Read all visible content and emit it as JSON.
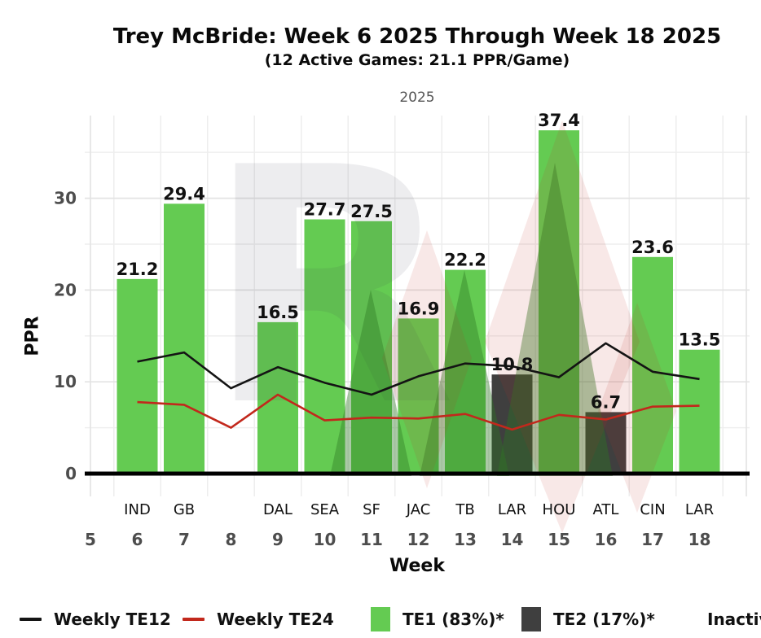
{
  "chart_data": {
    "type": "bar",
    "title": "Trey McBride: Week 6 2025 Through Week 18 2025",
    "subtitle": "(12 Active Games: 21.1 PPR/Game)",
    "facet_label": "2025",
    "xlabel": "Week",
    "ylabel": "PPR",
    "x_axis": {
      "ticks": [
        5,
        6,
        7,
        8,
        9,
        10,
        11,
        12,
        13,
        14,
        15,
        16,
        17,
        18
      ],
      "range": [
        5,
        19
      ]
    },
    "y_axis": {
      "major_ticks": [
        0,
        10,
        20,
        30
      ],
      "minor_ticks": [
        5,
        15,
        25,
        35
      ],
      "range": [
        -2.5,
        39.5
      ]
    },
    "games": [
      {
        "week": 6,
        "opponent": "IND",
        "ppr": 21.2,
        "tier": "TE1"
      },
      {
        "week": 7,
        "opponent": "GB",
        "ppr": 29.4,
        "tier": "TE1"
      },
      {
        "week": 8,
        "opponent": "",
        "ppr": null,
        "tier": null
      },
      {
        "week": 9,
        "opponent": "DAL",
        "ppr": 16.5,
        "tier": "TE1"
      },
      {
        "week": 10,
        "opponent": "SEA",
        "ppr": 27.7,
        "tier": "TE1"
      },
      {
        "week": 11,
        "opponent": "SF",
        "ppr": 27.5,
        "tier": "TE1"
      },
      {
        "week": 12,
        "opponent": "JAC",
        "ppr": 16.9,
        "tier": "TE1"
      },
      {
        "week": 13,
        "opponent": "TB",
        "ppr": 22.2,
        "tier": "TE1"
      },
      {
        "week": 14,
        "opponent": "LAR",
        "ppr": 10.8,
        "tier": "TE2"
      },
      {
        "week": 15,
        "opponent": "HOU",
        "ppr": 37.4,
        "tier": "TE1"
      },
      {
        "week": 16,
        "opponent": "ATL",
        "ppr": 6.7,
        "tier": "TE2"
      },
      {
        "week": 17,
        "opponent": "CIN",
        "ppr": 23.6,
        "tier": "TE1"
      },
      {
        "week": 18,
        "opponent": "LAR",
        "ppr": 13.5,
        "tier": "TE1"
      }
    ],
    "series": [
      {
        "name": "Weekly TE12",
        "type": "line",
        "color": "#141414",
        "weeks": [
          6,
          7,
          8,
          9,
          10,
          11,
          12,
          13,
          14,
          15,
          16,
          17,
          18
        ],
        "values": [
          12.2,
          13.2,
          9.3,
          11.6,
          9.9,
          8.6,
          10.6,
          12.0,
          11.7,
          10.5,
          14.2,
          11.1,
          10.3
        ]
      },
      {
        "name": "Weekly TE24",
        "type": "line",
        "color": "#c2281c",
        "weeks": [
          6,
          7,
          8,
          9,
          10,
          11,
          12,
          13,
          14,
          15,
          16,
          17,
          18
        ],
        "values": [
          7.8,
          7.5,
          5.0,
          8.6,
          5.8,
          6.1,
          6.0,
          6.5,
          4.8,
          6.4,
          5.9,
          7.3,
          7.4
        ]
      }
    ],
    "colors": {
      "te1": "#64cb52",
      "te2": "#3f3f3f",
      "grid_major": "#e3e3e3",
      "grid_minor": "#eeeeee",
      "axis_text": "#4d4d4d",
      "axis_line": "#000000"
    },
    "legend": {
      "items": [
        {
          "label": "Weekly TE12",
          "swatch": "line",
          "color": "#141414"
        },
        {
          "label": "Weekly TE24",
          "swatch": "line",
          "color": "#c2281c"
        },
        {
          "label": "TE1 (83%)*",
          "swatch": "box",
          "color": "#64cb52"
        },
        {
          "label": "TE2 (17%)*",
          "swatch": "box",
          "color": "#3f3f3f"
        },
        {
          "label": "Inactive",
          "swatch": "none",
          "color": ""
        }
      ]
    },
    "watermark": {
      "letter": "R"
    }
  }
}
